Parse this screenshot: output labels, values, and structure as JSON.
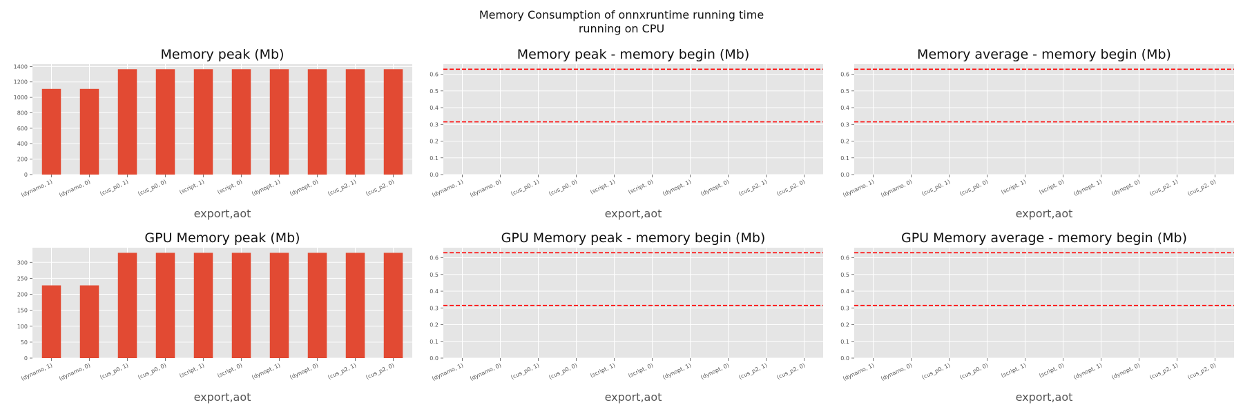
{
  "figure": {
    "suptitle_line1": "Memory Consumption of onnxruntime running time",
    "suptitle_line2": "running on CPU",
    "colors": {
      "bar": "#E24A33",
      "hline": "#FF0000",
      "panel_bg": "#E5E5E5",
      "grid": "#FFFFFF"
    }
  },
  "chart_data": [
    {
      "type": "bar",
      "title": "Memory peak (Mb)",
      "xlabel": "export,aot",
      "ylabel": "",
      "categories": [
        "(dynamo, 1)",
        "(dynamo, 0)",
        "(cus_p0, 1)",
        "(cus_p0, 0)",
        "(script, 1)",
        "(script, 0)",
        "(dynopt, 1)",
        "(dynopt, 0)",
        "(cus_p2, 1)",
        "(cus_p2, 0)"
      ],
      "values": [
        1110,
        1110,
        1365,
        1365,
        1365,
        1365,
        1365,
        1365,
        1365,
        1365
      ],
      "ylim": [
        0,
        1430
      ],
      "yticks": [
        0,
        200,
        400,
        600,
        800,
        1000,
        1200,
        1400
      ],
      "grid": true
    },
    {
      "type": "line",
      "title": "Memory peak - memory begin (Mb)",
      "xlabel": "export,aot",
      "ylabel": "",
      "categories": [
        "(dynamo, 1)",
        "(dynamo, 0)",
        "(cus_p0, 1)",
        "(cus_p0, 0)",
        "(script, 1)",
        "(script, 0)",
        "(dynopt, 1)",
        "(dynopt, 0)",
        "(cus_p2, 1)",
        "(cus_p2, 0)"
      ],
      "hlines": [
        0.315,
        0.63
      ],
      "ylim": [
        0,
        0.66
      ],
      "yticks": [
        "0.0",
        "0.1",
        "0.2",
        "0.3",
        "0.4",
        "0.5",
        "0.6"
      ],
      "grid": true
    },
    {
      "type": "line",
      "title": "Memory average - memory begin (Mb)",
      "xlabel": "export,aot",
      "ylabel": "",
      "categories": [
        "(dynamo, 1)",
        "(dynamo, 0)",
        "(cus_p0, 1)",
        "(cus_p0, 0)",
        "(script, 1)",
        "(script, 0)",
        "(dynopt, 1)",
        "(dynopt, 0)",
        "(cus_p2, 1)",
        "(cus_p2, 0)"
      ],
      "hlines": [
        0.315,
        0.63
      ],
      "ylim": [
        0,
        0.66
      ],
      "yticks": [
        "0.0",
        "0.1",
        "0.2",
        "0.3",
        "0.4",
        "0.5",
        "0.6"
      ],
      "grid": true
    },
    {
      "type": "bar",
      "title": "GPU Memory peak (Mb)",
      "xlabel": "export,aot",
      "ylabel": "",
      "categories": [
        "(dynamo, 1)",
        "(dynamo, 0)",
        "(cus_p0, 1)",
        "(cus_p0, 0)",
        "(script, 1)",
        "(script, 0)",
        "(dynopt, 1)",
        "(dynopt, 0)",
        "(cus_p2, 1)",
        "(cus_p2, 0)"
      ],
      "values": [
        228,
        228,
        330,
        330,
        330,
        330,
        330,
        330,
        330,
        330
      ],
      "ylim": [
        0,
        346
      ],
      "yticks": [
        0,
        50,
        100,
        150,
        200,
        250,
        300
      ],
      "grid": true
    },
    {
      "type": "line",
      "title": "GPU Memory peak - memory begin (Mb)",
      "xlabel": "export,aot",
      "ylabel": "",
      "categories": [
        "(dynamo, 1)",
        "(dynamo, 0)",
        "(cus_p0, 1)",
        "(cus_p0, 0)",
        "(script, 1)",
        "(script, 0)",
        "(dynopt, 1)",
        "(dynopt, 0)",
        "(cus_p2, 1)",
        "(cus_p2, 0)"
      ],
      "hlines": [
        0.315,
        0.63
      ],
      "ylim": [
        0,
        0.66
      ],
      "yticks": [
        "0.0",
        "0.1",
        "0.2",
        "0.3",
        "0.4",
        "0.5",
        "0.6"
      ],
      "grid": true
    },
    {
      "type": "line",
      "title": "GPU Memory average - memory begin (Mb)",
      "xlabel": "export,aot",
      "ylabel": "",
      "categories": [
        "(dynamo, 1)",
        "(dynamo, 0)",
        "(cus_p0, 1)",
        "(cus_p0, 0)",
        "(script, 1)",
        "(script, 0)",
        "(dynopt, 1)",
        "(dynopt, 0)",
        "(cus_p2, 1)",
        "(cus_p2, 0)"
      ],
      "hlines": [
        0.315,
        0.63
      ],
      "ylim": [
        0,
        0.66
      ],
      "yticks": [
        "0.0",
        "0.1",
        "0.2",
        "0.3",
        "0.4",
        "0.5",
        "0.6"
      ],
      "grid": true
    }
  ]
}
